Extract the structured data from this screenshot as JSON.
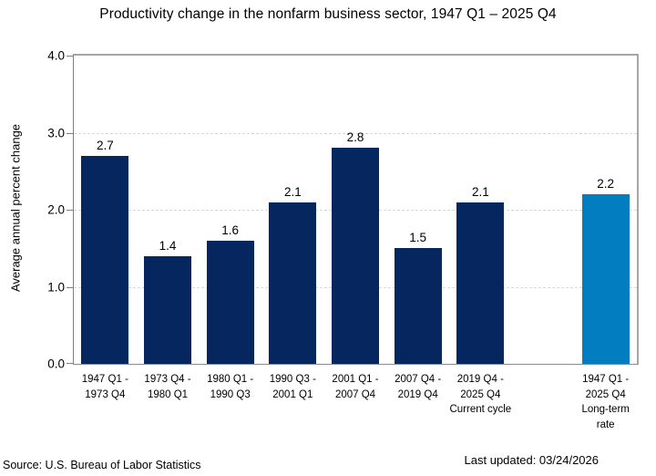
{
  "title": "Productivity change in the nonfarm business sector, 1947 Q1 – 2025 Q4",
  "footer": {
    "source": "Source: U.S. Bureau of Labor Statistics",
    "last_updated": "Last updated: 03/24/2026"
  },
  "chart_data": {
    "type": "bar",
    "title": "Productivity change in the nonfarm business sector, 1947 Q1 – 2025 Q4",
    "xlabel": "",
    "ylabel": "Average annual percent change",
    "ylim": [
      0,
      4
    ],
    "yticks": [
      "0.0",
      "1.0",
      "2.0",
      "3.0",
      "4.0"
    ],
    "gridlines_at": [
      1.0,
      2.0,
      3.0
    ],
    "grid_style": "horizontal dashed light gray",
    "legend": "none",
    "categories": [
      "1947 Q1 - 1973 Q4",
      "1973 Q4 - 1980 Q1",
      "1980 Q1 - 1990 Q3",
      "1990 Q3 - 2001 Q1",
      "2001 Q1 - 2007 Q4",
      "2007 Q4 - 2019 Q4",
      "2019 Q4 - 2025 Q4 Current cycle",
      "1947 Q1 - 2025 Q4 Long-term rate"
    ],
    "values": [
      2.7,
      1.4,
      1.6,
      2.1,
      2.8,
      1.5,
      2.1,
      2.2
    ],
    "colors": {
      "navy": "#05265E",
      "light_blue": "#027EC0"
    },
    "bars": [
      {
        "slot": 0,
        "value": 2.7,
        "value_label": "2.7",
        "color": "#05265E",
        "label_lines": "1947 Q1 -\n1973 Q4"
      },
      {
        "slot": 1,
        "value": 1.4,
        "value_label": "1.4",
        "color": "#05265E",
        "label_lines": "1973 Q4 -\n1980 Q1"
      },
      {
        "slot": 2,
        "value": 1.6,
        "value_label": "1.6",
        "color": "#05265E",
        "label_lines": "1980 Q1 -\n1990 Q3"
      },
      {
        "slot": 3,
        "value": 2.1,
        "value_label": "2.1",
        "color": "#05265E",
        "label_lines": "1990 Q3 -\n2001 Q1"
      },
      {
        "slot": 4,
        "value": 2.8,
        "value_label": "2.8",
        "color": "#05265E",
        "label_lines": "2001 Q1 -\n2007 Q4"
      },
      {
        "slot": 5,
        "value": 1.5,
        "value_label": "1.5",
        "color": "#05265E",
        "label_lines": "2007 Q4 -\n2019 Q4"
      },
      {
        "slot": 6,
        "value": 2.1,
        "value_label": "2.1",
        "color": "#05265E",
        "label_lines": "2019 Q4 -\n2025 Q4\nCurrent cycle"
      },
      {
        "slot": 8,
        "value": 2.2,
        "value_label": "2.2",
        "color": "#027EC0",
        "label_lines": "1947 Q1 -\n2025 Q4\nLong-term\nrate"
      }
    ]
  }
}
